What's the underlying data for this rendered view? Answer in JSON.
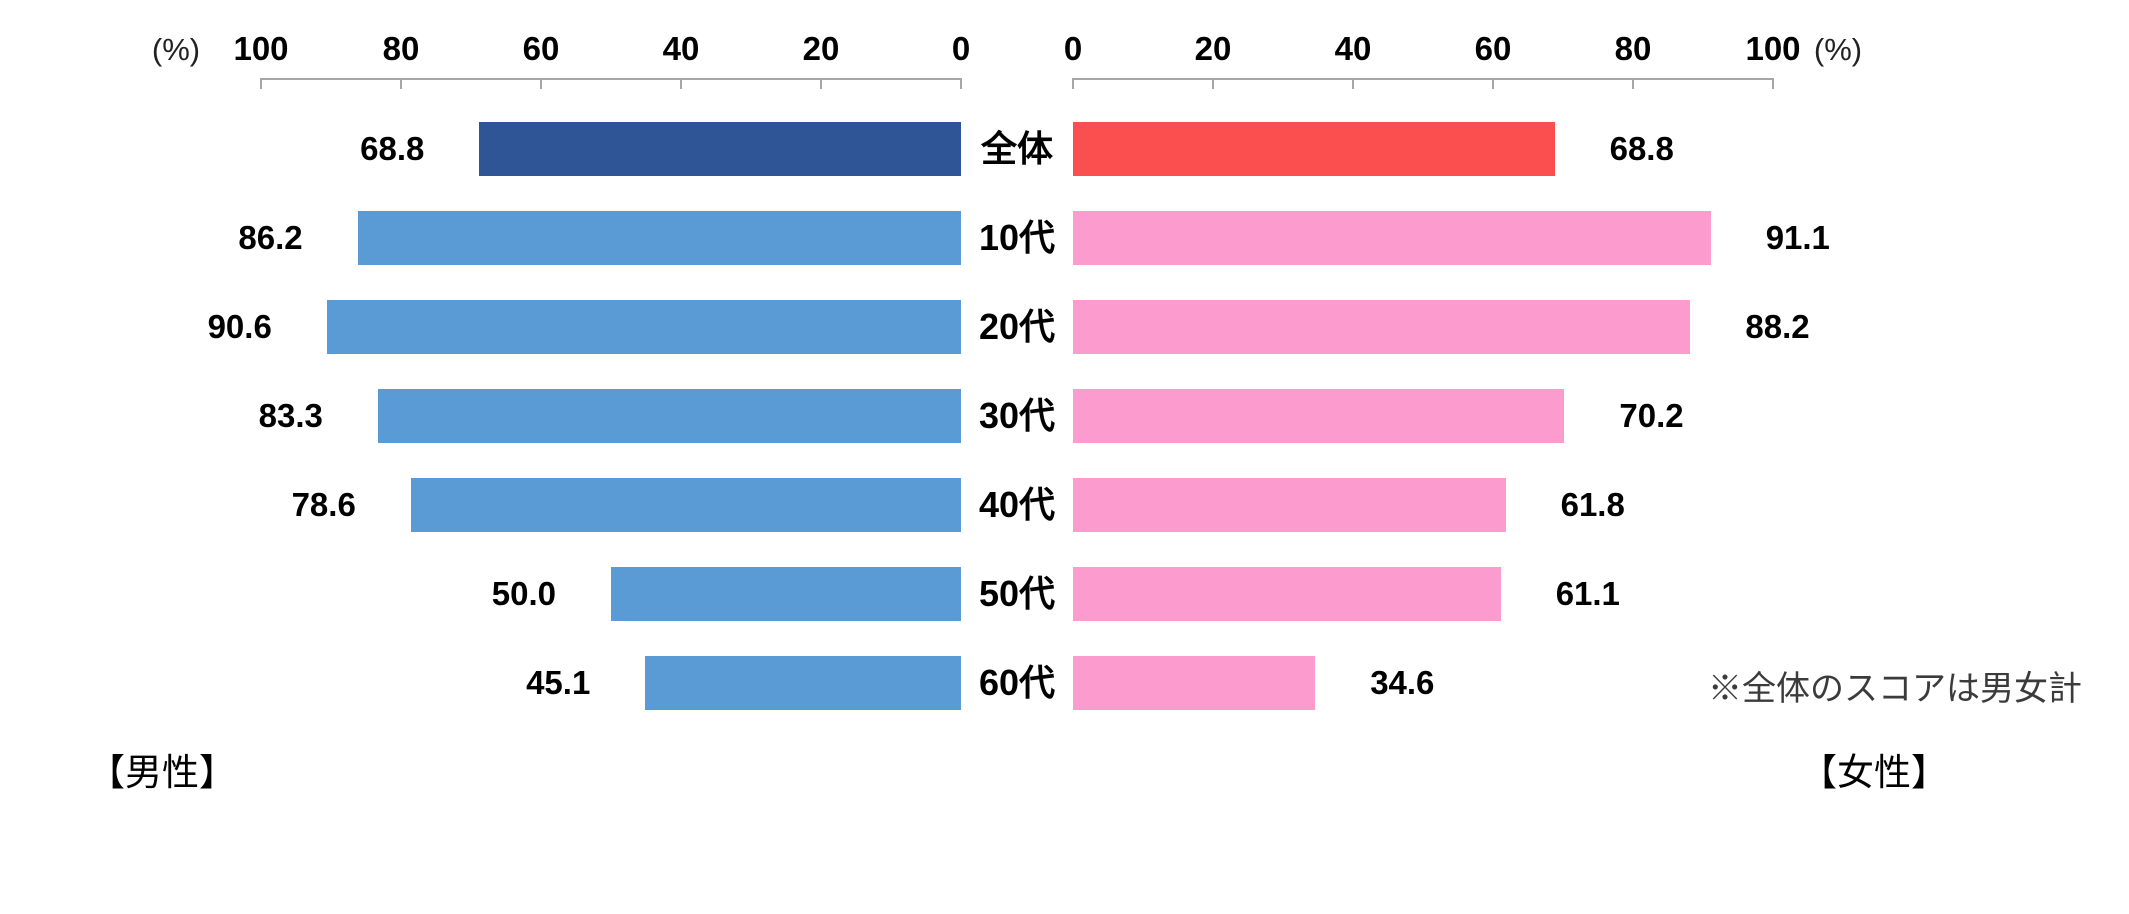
{
  "axis": {
    "unit_left": "(%)",
    "unit_right": "(%)",
    "left_ticks": [
      "100",
      "80",
      "60",
      "40",
      "20",
      "0"
    ],
    "right_ticks": [
      "0",
      "20",
      "40",
      "60",
      "80",
      "100"
    ]
  },
  "chart_data": {
    "type": "bar",
    "orientation": "bilateral-horizontal-pyramid",
    "title": "",
    "categories": [
      "全体",
      "10代",
      "20代",
      "30代",
      "40代",
      "50代",
      "60代"
    ],
    "series": [
      {
        "name": "男性",
        "side": "left",
        "values": [
          68.8,
          86.2,
          90.6,
          83.3,
          78.6,
          50.0,
          45.1
        ],
        "labels": [
          "68.8",
          "86.2",
          "90.6",
          "83.3",
          "78.6",
          "50.0",
          "45.1"
        ],
        "color": "#5b9bd5",
        "highlight_color": "#2f5597"
      },
      {
        "name": "女性",
        "side": "right",
        "values": [
          68.8,
          91.1,
          88.2,
          70.2,
          61.8,
          61.1,
          34.6
        ],
        "labels": [
          "68.8",
          "91.1",
          "88.2",
          "70.2",
          "61.8",
          "61.1",
          "34.6"
        ],
        "color": "#fc9bcd",
        "highlight_color": "#fb4f4f"
      }
    ],
    "xlim": [
      0,
      100
    ],
    "highlight_category": "全体",
    "grid": false,
    "legend_position": "none",
    "note": "※全体のスコアは男女計",
    "footer_left": "【男性】",
    "footer_right": "【女性】",
    "axis_color": "#a6a6a6"
  }
}
